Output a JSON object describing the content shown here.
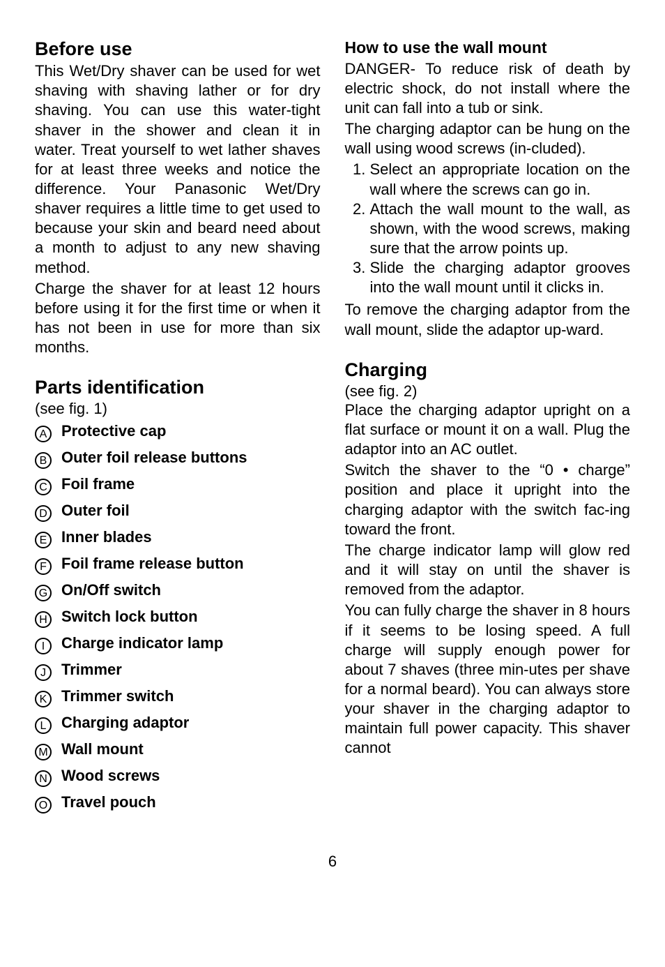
{
  "left": {
    "before_use": {
      "heading": "Before use",
      "p1": "This Wet/Dry shaver can be used for wet shaving with shaving lather or for dry shaving. You can use this water-tight shaver in the shower and clean it in water. Treat yourself to wet lather shaves for at least three weeks and notice the difference. Your Panasonic Wet/Dry shaver requires a little time to get used to because your skin and beard need about a month to adjust to any new shaving method.",
      "p2": "Charge the shaver for at least 12 hours before using it for the first time or when it has not been in use for more than six months."
    },
    "parts": {
      "heading": "Parts identification",
      "see_fig": "(see fig. 1)",
      "items": [
        {
          "letter": "A",
          "label": "Protective cap"
        },
        {
          "letter": "B",
          "label": "Outer foil release buttons"
        },
        {
          "letter": "C",
          "label": "Foil frame"
        },
        {
          "letter": "D",
          "label": "Outer foil"
        },
        {
          "letter": "E",
          "label": "Inner blades"
        },
        {
          "letter": "F",
          "label": "Foil frame release button"
        },
        {
          "letter": "G",
          "label": "On/Off switch"
        },
        {
          "letter": "H",
          "label": "Switch lock button"
        },
        {
          "letter": "I",
          "label": "Charge indicator lamp"
        },
        {
          "letter": "J",
          "label": "Trimmer"
        },
        {
          "letter": "K",
          "label": "Trimmer switch"
        },
        {
          "letter": "L",
          "label": "Charging adaptor"
        },
        {
          "letter": "M",
          "label": "Wall mount"
        },
        {
          "letter": "N",
          "label": "Wood screws"
        },
        {
          "letter": "O",
          "label": "Travel pouch"
        }
      ]
    }
  },
  "right": {
    "wall_mount": {
      "heading": "How to use the wall mount",
      "p1": "DANGER- To reduce risk of death by electric shock, do not install where the unit can fall into a tub or sink.",
      "p2": "The charging adaptor can be hung on the wall using wood screws (in-cluded).",
      "steps": [
        "Select an appropriate location on the wall where the screws can go in.",
        "Attach the wall mount to the wall, as shown, with the wood screws, making sure that the arrow points up.",
        "Slide the charging adaptor grooves into the wall mount until it clicks in."
      ],
      "p3": "To remove the charging adaptor from the wall mount, slide the adaptor up-ward."
    },
    "charging": {
      "heading": "Charging",
      "see_fig": "(see fig. 2)",
      "p1": "Place the charging adaptor upright on a flat surface or mount it on a wall. Plug the adaptor into an AC outlet.",
      "p2": "Switch the shaver to the “0 • charge” position and place it upright into the charging adaptor with the switch fac-ing toward the front.",
      "p3": "The charge indicator lamp will glow red and it will stay on until the shaver is removed from the adaptor.",
      "p4": "You can fully charge the shaver in 8 hours if it seems to be losing speed. A full charge will supply enough power for about 7 shaves (three min-utes per shave for a normal beard). You can always store your shaver in the charging adaptor to maintain full power capacity. This shaver cannot"
    }
  },
  "page_number": "6"
}
